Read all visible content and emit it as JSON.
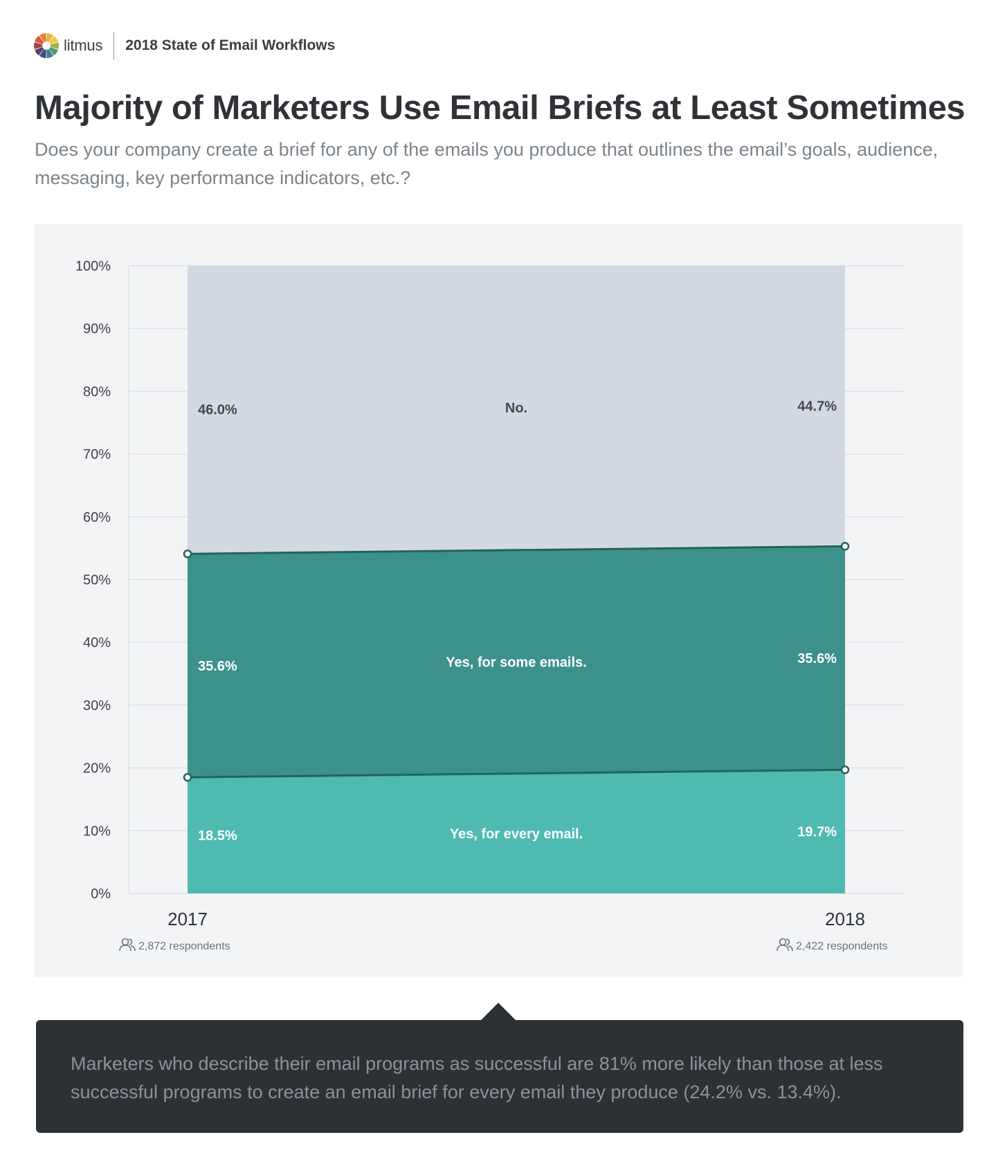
{
  "header": {
    "brand_name": "litmus",
    "report_name": "2018 State of Email Workflows",
    "logo_colors": [
      "#e8b04a",
      "#f0c64e",
      "#9bb34a",
      "#4a9a77",
      "#3e7d8f",
      "#3a4f7a",
      "#5b3f6d",
      "#a84344",
      "#d65a3c",
      "#e8833a"
    ]
  },
  "title": "Majority of Marketers Use Email Briefs at Least Sometimes",
  "subtitle": "Does your company create a brief for any of the emails you produce that outlines the email’s goals, audience, messaging, key performance indicators, etc.?",
  "chart_data": {
    "type": "area",
    "stacked": true,
    "x": [
      "2017",
      "2018"
    ],
    "respondents": [
      "2,872 respondents",
      "2,422 respondents"
    ],
    "ylim": [
      0,
      100
    ],
    "yticks": [
      0,
      10,
      20,
      30,
      40,
      50,
      60,
      70,
      80,
      90,
      100
    ],
    "ytick_labels": [
      "0%",
      "10%",
      "20%",
      "30%",
      "40%",
      "50%",
      "60%",
      "70%",
      "80%",
      "90%",
      "100%"
    ],
    "grid": true,
    "series": [
      {
        "name": "Yes, for every email.",
        "values": [
          18.5,
          19.7
        ],
        "labels": [
          "18.5%",
          "19.7%"
        ],
        "color": "#4ebab0",
        "label_color": "#ffffff"
      },
      {
        "name": "Yes, for some emails.",
        "values": [
          35.6,
          35.6
        ],
        "labels": [
          "35.6%",
          "35.6%"
        ],
        "color": "#3c918a",
        "label_color": "#ffffff"
      },
      {
        "name": "No.",
        "values": [
          46.0,
          44.7
        ],
        "labels": [
          "46.0%",
          "44.7%"
        ],
        "color": "#d3d9e0",
        "label_color": "#45484d"
      }
    ]
  },
  "callout": {
    "text": "Marketers who describe their email programs as successful are 81% more likely than those at less successful programs to create an email brief for every email they produce (24.2% vs. 13.4%)."
  }
}
